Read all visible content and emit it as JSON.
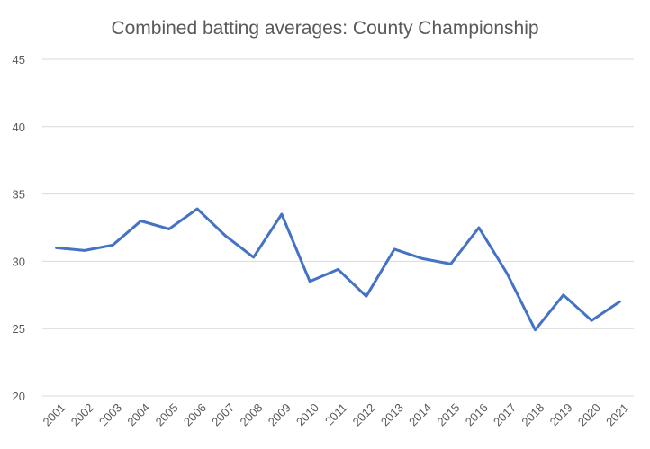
{
  "chart_data": {
    "type": "line",
    "title": "Combined batting averages: County Championship",
    "xlabel": "",
    "ylabel": "",
    "ylim": [
      20,
      45
    ],
    "yticks": [
      20,
      25,
      30,
      35,
      40,
      45
    ],
    "grid": true,
    "legend": "none",
    "categories": [
      "2001",
      "2002",
      "2003",
      "2004",
      "2005",
      "2006",
      "2007",
      "2008",
      "2009",
      "2010",
      "2011",
      "2012",
      "2013",
      "2014",
      "2015",
      "2016",
      "2017",
      "2018",
      "2019",
      "2020",
      "2021"
    ],
    "series": [
      {
        "color": "#4472c4",
        "values": [
          31.0,
          30.8,
          31.2,
          33.0,
          32.4,
          33.9,
          31.9,
          30.3,
          33.5,
          28.5,
          29.4,
          27.4,
          30.9,
          30.2,
          29.8,
          32.5,
          29.1,
          24.9,
          27.5,
          25.6,
          27.0
        ]
      }
    ]
  }
}
